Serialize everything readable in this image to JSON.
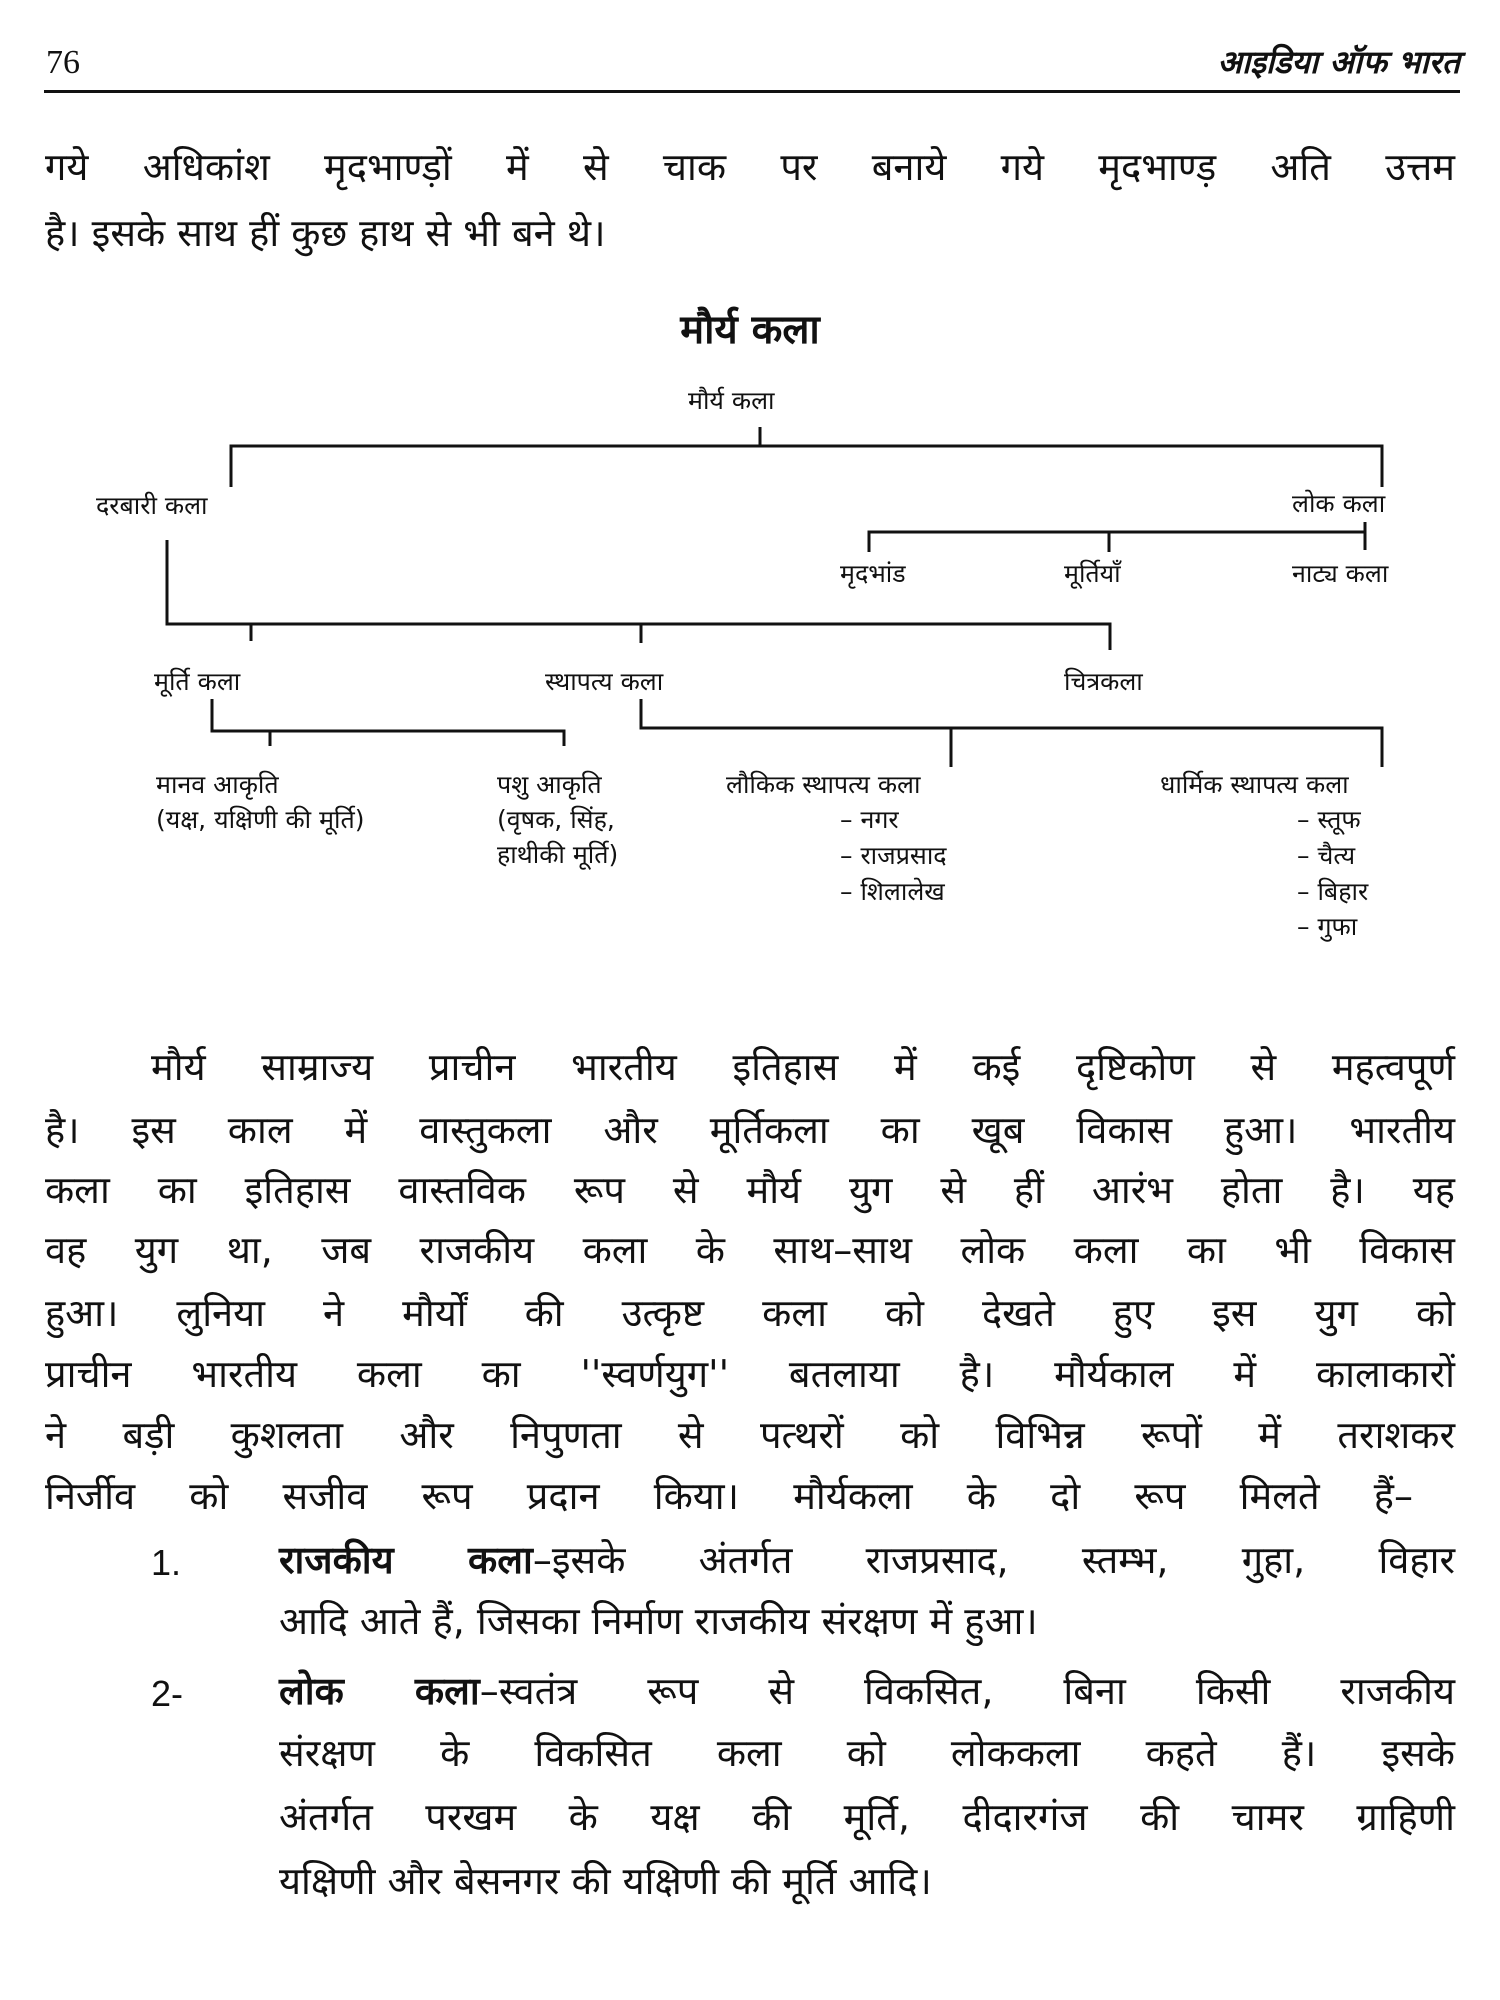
{
  "header": {
    "page_number": "76",
    "book_title": "आइडिया ऑफ भारत"
  },
  "intro_lines": [
    "गये अधिकांश मृदभाण्ड़ों में से चाक पर बनाये गये मृदभाण्ड़ अति उत्तम",
    "है। इसके साथ हीं कुछ हाथ से भी बने थे।"
  ],
  "section_heading": "मौर्य कला",
  "diagram": {
    "root": "मौर्य कला",
    "darbari": "दरबारी कला",
    "lok": "लोक कला",
    "lok_children": [
      "मृदभांड",
      "मूर्तियाँ",
      "नाट्य कला"
    ],
    "darbari_children": [
      "मूर्ति कला",
      "स्थापत्य कला",
      "चित्रकला"
    ],
    "murti_children": [
      {
        "title": "मानव आकृति",
        "lines": [
          "(यक्ष, यक्षिणी की मूर्ति)"
        ]
      },
      {
        "title": "पशु आकृति",
        "lines": [
          "(वृषक, सिंह,",
          "हाथीकी मूर्ति)"
        ]
      }
    ],
    "sthapatya_children": [
      {
        "title": "लौकिक स्थापत्य कला",
        "items": [
          "– नगर",
          "– राजप्रसाद",
          "– शिलालेख"
        ]
      },
      {
        "title": "धार्मिक स्थापत्य कला",
        "items": [
          "– स्तूफ",
          "– चैत्य",
          "– बिहार",
          "– गुफा"
        ]
      }
    ]
  },
  "body_lines": [
    "मौर्य साम्राज्य प्राचीन भारतीय इतिहास में कई दृष्टिकोण से महत्वपूर्ण",
    "है। इस काल में वास्तुकला और मूर्तिकला का खूब विकास हुआ। भारतीय",
    "कला का इतिहास वास्तविक रूप से मौर्य युग से हीं आरंभ होता है। यह",
    "वह युग था, जब राजकीय कला के साथ–साथ लोक कला का भी विकास",
    "हुआ। लुनिया ने मौर्यों की उत्कृष्ट कला को देखते हुए इस युग को",
    "प्राचीन भारतीय कला का ''स्वर्णयुग'' बतलाया है। मौर्यकाल में कालाकारों",
    "ने बड़ी कुशलता और निपुणता से पत्थरों को विभिन्न रूपों में तराशकर",
    "निर्जीव को सजीव रूप प्रदान किया। मौर्यकला के दो रूप मिलते हैं–"
  ],
  "list": [
    {
      "number": "1.",
      "term": "राजकीय कला",
      "first": "–इसके अंतर्गत राजप्रसाद, स्तम्भ, गुहा, विहार",
      "rest": [
        "आदि आते हैं, जिसका निर्माण राजकीय संरक्षण में हुआ।"
      ]
    },
    {
      "number": "2-",
      "term": "लोक कला",
      "first": "–स्वतंत्र रूप से विकसित, बिना किसी राजकीय",
      "rest": [
        "संरक्षण के विकसित कला को लोककला कहते हैं। इसके",
        "अंतर्गत परखम के यक्ष की मूर्ति, दीदारगंज की चामर ग्राहिणी",
        "यक्षिणी और बेसनगर की यक्षिणी की मूर्ति आदि।"
      ]
    }
  ]
}
